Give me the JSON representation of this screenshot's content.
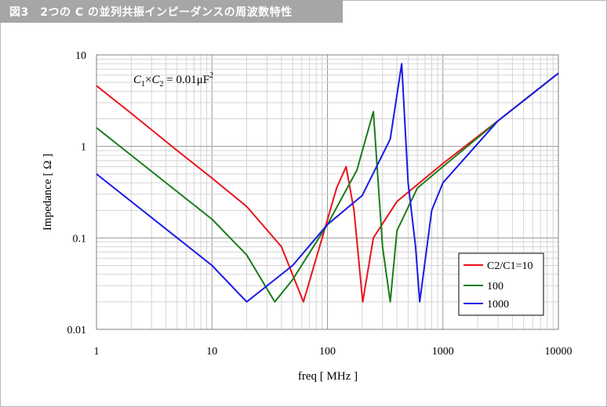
{
  "page": {
    "title": "図3　2つの C の並列共振インピーダンスの周波数特性"
  },
  "colors": {
    "red": "#e8141b",
    "green": "#1b7d1b",
    "blue": "#1a1ae6",
    "title_bg": "#a6a6a6"
  },
  "chart_data": {
    "type": "line",
    "x_scale": "log",
    "y_scale": "log",
    "xlim": [
      1,
      10000
    ],
    "ylim": [
      0.01,
      10
    ],
    "xlabel": "freq [ MHz ]",
    "ylabel": "Impedance [ Ω ]",
    "x_ticks": [
      "1",
      "10",
      "100",
      "1000",
      "10000"
    ],
    "y_ticks": [
      "0.01",
      "0.1",
      "1",
      "10"
    ],
    "annotation": {
      "c1": "C",
      "c1_sub": "1",
      "times": "×",
      "c2": "C",
      "c2_sub": "2",
      "rest": " = 0.01μF",
      "sup": "2"
    },
    "grid": true,
    "legend_position": "bottom-right",
    "series": [
      {
        "name": "C2/C1=10",
        "color": "#e8141b",
        "x": [
          1,
          2,
          5,
          10,
          20,
          40,
          62,
          90,
          120,
          145,
          170,
          202,
          250,
          400,
          1000,
          3000,
          10000
        ],
        "y": [
          4.6,
          2.3,
          0.9,
          0.45,
          0.22,
          0.08,
          0.02,
          0.1,
          0.35,
          0.6,
          0.2,
          0.02,
          0.1,
          0.25,
          0.65,
          1.9,
          6.3
        ]
      },
      {
        "name": "100",
        "color": "#1b7d1b",
        "x": [
          1,
          2,
          5,
          10,
          20,
          35,
          50,
          100,
          180,
          250,
          300,
          350,
          400,
          600,
          1000,
          3000,
          10000
        ],
        "y": [
          1.6,
          0.8,
          0.32,
          0.16,
          0.065,
          0.02,
          0.035,
          0.14,
          0.55,
          2.4,
          0.08,
          0.02,
          0.12,
          0.35,
          0.6,
          1.9,
          6.3
        ]
      },
      {
        "name": "1000",
        "color": "#1a1ae6",
        "x": [
          1,
          2,
          5,
          10,
          20,
          50,
          100,
          200,
          350,
          440,
          500,
          580,
          630,
          800,
          1000,
          3000,
          10000
        ],
        "y": [
          0.5,
          0.25,
          0.1,
          0.05,
          0.02,
          0.05,
          0.14,
          0.29,
          1.2,
          8.0,
          0.4,
          0.08,
          0.02,
          0.2,
          0.4,
          1.9,
          6.3
        ]
      }
    ]
  }
}
